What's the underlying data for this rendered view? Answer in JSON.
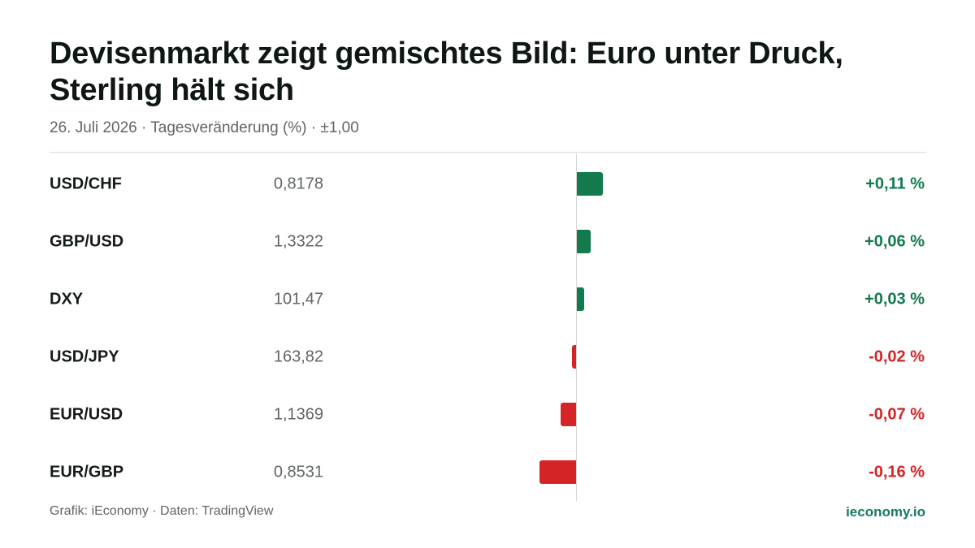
{
  "title": "Devisenmarkt zeigt gemischtes Bild: Euro unter Druck, Sterling hält sich",
  "subtitle": "26. Juli 2026 · Tagesveränderung (%) · ±1,00",
  "footer": {
    "source": "Grafik: iEconomy · Daten: TradingView",
    "brand": "ieconomy.io"
  },
  "colors": {
    "positive": "#137a4e",
    "negative": "#d42426",
    "brand": "#137a63"
  },
  "chart_data": {
    "type": "bar",
    "orientation": "horizontal",
    "title": "Devisenmarkt zeigt gemischtes Bild: Euro unter Druck, Sterling hält sich",
    "subtitle": "26. Juli 2026 · Tagesveränderung (%) · ±1,00",
    "categories": [
      "USD/CHF",
      "GBP/USD",
      "DXY",
      "USD/JPY",
      "EUR/USD",
      "EUR/GBP"
    ],
    "rates": [
      "0,8178",
      "1,3322",
      "101,47",
      "163,82",
      "1,1369",
      "0,8531"
    ],
    "values": [
      0.11,
      0.06,
      0.03,
      -0.02,
      -0.07,
      -0.16
    ],
    "value_labels": [
      "+0,11 %",
      "+0,06 %",
      "+0,03 %",
      "-0,02 %",
      "-0,07 %",
      "-0,16 %"
    ],
    "xlim": [
      -1,
      1
    ],
    "grid": false,
    "legend": "none"
  }
}
